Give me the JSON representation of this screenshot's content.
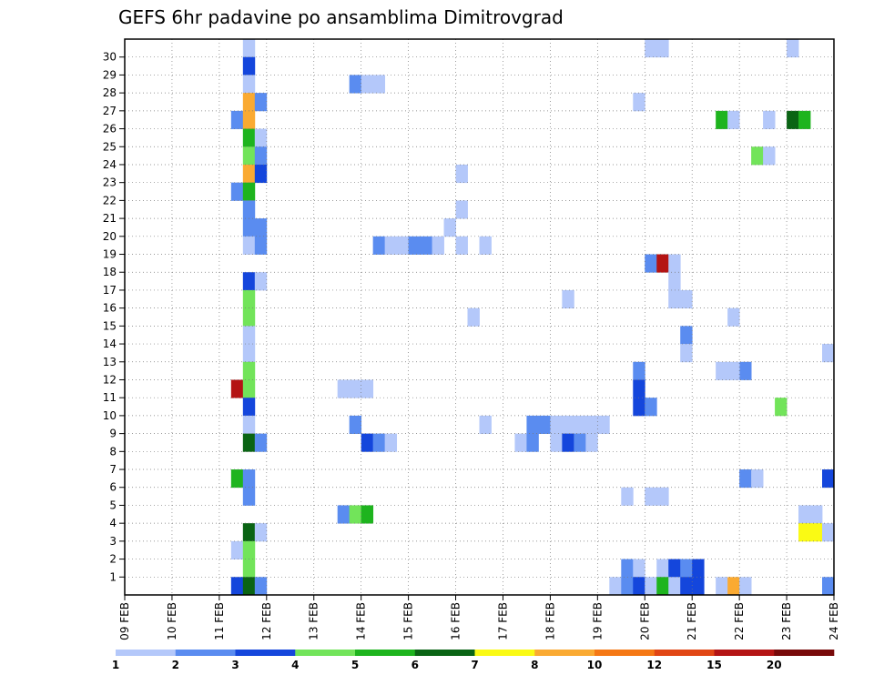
{
  "chart_data": {
    "type": "heatmap",
    "title": "GEFS 6hr padavine po ansamblima Dimitrovgrad",
    "xlabel": "",
    "ylabel": "",
    "x_tick_labels": [
      "09 FEB",
      "10 FEB",
      "11 FEB",
      "12 FEB",
      "13 FEB",
      "14 FEB",
      "15 FEB",
      "16 FEB",
      "17 FEB",
      "18 FEB",
      "19 FEB",
      "20 FEB",
      "21 FEB",
      "22 FEB",
      "23 FEB",
      "24 FEB"
    ],
    "y_tick_labels": [
      "1",
      "2",
      "3",
      "4",
      "5",
      "6",
      "7",
      "8",
      "9",
      "10",
      "11",
      "12",
      "13",
      "14",
      "15",
      "16",
      "17",
      "18",
      "19",
      "20",
      "21",
      "22",
      "23",
      "24",
      "25",
      "26",
      "27",
      "28",
      "29",
      "30"
    ],
    "time_steps": 60,
    "members": 31,
    "grid": true,
    "colorbar": {
      "bounds": [
        "1",
        "2",
        "3",
        "4",
        "5",
        "6",
        "7",
        "8",
        "10",
        "12",
        "15",
        "20"
      ],
      "colors": [
        "#b4c8fa",
        "#5a8cf0",
        "#1446dc",
        "#72e45a",
        "#1eb41e",
        "#0a6414",
        "#fafa14",
        "#faaa32",
        "#f57814",
        "#e14614",
        "#b41414",
        "#780a0a"
      ]
    },
    "cells": [
      {
        "step": 10,
        "member": 30,
        "cls": 1
      },
      {
        "step": 10,
        "member": 29,
        "cls": 3
      },
      {
        "step": 10,
        "member": 28,
        "cls": 1
      },
      {
        "step": 10,
        "member": 27,
        "cls": 8
      },
      {
        "step": 11,
        "member": 27,
        "cls": 2
      },
      {
        "step": 9,
        "member": 26,
        "cls": 2
      },
      {
        "step": 10,
        "member": 26,
        "cls": 8
      },
      {
        "step": 10,
        "member": 25,
        "cls": 5
      },
      {
        "step": 11,
        "member": 25,
        "cls": 1
      },
      {
        "step": 10,
        "member": 24,
        "cls": 4
      },
      {
        "step": 11,
        "member": 24,
        "cls": 2
      },
      {
        "step": 10,
        "member": 23,
        "cls": 8
      },
      {
        "step": 11,
        "member": 23,
        "cls": 3
      },
      {
        "step": 9,
        "member": 22,
        "cls": 2
      },
      {
        "step": 10,
        "member": 22,
        "cls": 5
      },
      {
        "step": 10,
        "member": 21,
        "cls": 2
      },
      {
        "step": 10,
        "member": 20,
        "cls": 2
      },
      {
        "step": 11,
        "member": 20,
        "cls": 2
      },
      {
        "step": 10,
        "member": 19,
        "cls": 1
      },
      {
        "step": 11,
        "member": 19,
        "cls": 2
      },
      {
        "step": 10,
        "member": 17,
        "cls": 3
      },
      {
        "step": 11,
        "member": 17,
        "cls": 1
      },
      {
        "step": 10,
        "member": 16,
        "cls": 4
      },
      {
        "step": 10,
        "member": 15,
        "cls": 4
      },
      {
        "step": 10,
        "member": 14,
        "cls": 1
      },
      {
        "step": 10,
        "member": 13,
        "cls": 1
      },
      {
        "step": 10,
        "member": 12,
        "cls": 4
      },
      {
        "step": 9,
        "member": 11,
        "cls": 11
      },
      {
        "step": 10,
        "member": 11,
        "cls": 4
      },
      {
        "step": 10,
        "member": 10,
        "cls": 3
      },
      {
        "step": 10,
        "member": 9,
        "cls": 1
      },
      {
        "step": 10,
        "member": 8,
        "cls": 6
      },
      {
        "step": 11,
        "member": 8,
        "cls": 2
      },
      {
        "step": 9,
        "member": 6,
        "cls": 5
      },
      {
        "step": 10,
        "member": 6,
        "cls": 2
      },
      {
        "step": 10,
        "member": 5,
        "cls": 2
      },
      {
        "step": 10,
        "member": 3,
        "cls": 6
      },
      {
        "step": 11,
        "member": 3,
        "cls": 1
      },
      {
        "step": 9,
        "member": 2,
        "cls": 1
      },
      {
        "step": 10,
        "member": 2,
        "cls": 4
      },
      {
        "step": 10,
        "member": 1,
        "cls": 4
      },
      {
        "step": 9,
        "member": 0,
        "cls": 3
      },
      {
        "step": 10,
        "member": 0,
        "cls": 6
      },
      {
        "step": 11,
        "member": 0,
        "cls": 2
      },
      {
        "step": 19,
        "member": 28,
        "cls": 2
      },
      {
        "step": 20,
        "member": 28,
        "cls": 1
      },
      {
        "step": 21,
        "member": 28,
        "cls": 1
      },
      {
        "step": 21,
        "member": 19,
        "cls": 2
      },
      {
        "step": 22,
        "member": 19,
        "cls": 1
      },
      {
        "step": 23,
        "member": 19,
        "cls": 1
      },
      {
        "step": 24,
        "member": 19,
        "cls": 2
      },
      {
        "step": 25,
        "member": 19,
        "cls": 2
      },
      {
        "step": 26,
        "member": 19,
        "cls": 1
      },
      {
        "step": 18,
        "member": 11,
        "cls": 1
      },
      {
        "step": 19,
        "member": 11,
        "cls": 1
      },
      {
        "step": 20,
        "member": 11,
        "cls": 1
      },
      {
        "step": 19,
        "member": 9,
        "cls": 2
      },
      {
        "step": 20,
        "member": 8,
        "cls": 3
      },
      {
        "step": 21,
        "member": 8,
        "cls": 2
      },
      {
        "step": 22,
        "member": 8,
        "cls": 1
      },
      {
        "step": 18,
        "member": 4,
        "cls": 2
      },
      {
        "step": 19,
        "member": 4,
        "cls": 4
      },
      {
        "step": 20,
        "member": 4,
        "cls": 5
      },
      {
        "step": 28,
        "member": 23,
        "cls": 1
      },
      {
        "step": 28,
        "member": 21,
        "cls": 1
      },
      {
        "step": 27,
        "member": 20,
        "cls": 1
      },
      {
        "step": 28,
        "member": 19,
        "cls": 1
      },
      {
        "step": 30,
        "member": 19,
        "cls": 1
      },
      {
        "step": 29,
        "member": 15,
        "cls": 1
      },
      {
        "step": 30,
        "member": 9,
        "cls": 1
      },
      {
        "step": 34,
        "member": 9,
        "cls": 2
      },
      {
        "step": 35,
        "member": 9,
        "cls": 2
      },
      {
        "step": 33,
        "member": 8,
        "cls": 1
      },
      {
        "step": 34,
        "member": 8,
        "cls": 2
      },
      {
        "step": 36,
        "member": 9,
        "cls": 1
      },
      {
        "step": 37,
        "member": 9,
        "cls": 1
      },
      {
        "step": 38,
        "member": 9,
        "cls": 1
      },
      {
        "step": 39,
        "member": 9,
        "cls": 1
      },
      {
        "step": 40,
        "member": 9,
        "cls": 1
      },
      {
        "step": 36,
        "member": 8,
        "cls": 1
      },
      {
        "step": 37,
        "member": 8,
        "cls": 3
      },
      {
        "step": 38,
        "member": 8,
        "cls": 2
      },
      {
        "step": 39,
        "member": 8,
        "cls": 1
      },
      {
        "step": 37,
        "member": 16,
        "cls": 1
      },
      {
        "step": 44,
        "member": 30,
        "cls": 1
      },
      {
        "step": 45,
        "member": 30,
        "cls": 1
      },
      {
        "step": 43,
        "member": 27,
        "cls": 1
      },
      {
        "step": 44,
        "member": 18,
        "cls": 2
      },
      {
        "step": 45,
        "member": 18,
        "cls": 11
      },
      {
        "step": 46,
        "member": 18,
        "cls": 1
      },
      {
        "step": 46,
        "member": 17,
        "cls": 1
      },
      {
        "step": 46,
        "member": 16,
        "cls": 1
      },
      {
        "step": 47,
        "member": 16,
        "cls": 1
      },
      {
        "step": 47,
        "member": 14,
        "cls": 2
      },
      {
        "step": 47,
        "member": 13,
        "cls": 1
      },
      {
        "step": 43,
        "member": 12,
        "cls": 2
      },
      {
        "step": 43,
        "member": 11,
        "cls": 3
      },
      {
        "step": 43,
        "member": 10,
        "cls": 3
      },
      {
        "step": 44,
        "member": 10,
        "cls": 2
      },
      {
        "step": 42,
        "member": 5,
        "cls": 1
      },
      {
        "step": 44,
        "member": 5,
        "cls": 1
      },
      {
        "step": 45,
        "member": 5,
        "cls": 1
      },
      {
        "step": 42,
        "member": 1,
        "cls": 2
      },
      {
        "step": 43,
        "member": 1,
        "cls": 1
      },
      {
        "step": 45,
        "member": 1,
        "cls": 1
      },
      {
        "step": 46,
        "member": 1,
        "cls": 3
      },
      {
        "step": 47,
        "member": 1,
        "cls": 2
      },
      {
        "step": 48,
        "member": 1,
        "cls": 3
      },
      {
        "step": 41,
        "member": 0,
        "cls": 1
      },
      {
        "step": 42,
        "member": 0,
        "cls": 2
      },
      {
        "step": 43,
        "member": 0,
        "cls": 3
      },
      {
        "step": 44,
        "member": 0,
        "cls": 1
      },
      {
        "step": 45,
        "member": 0,
        "cls": 5
      },
      {
        "step": 46,
        "member": 0,
        "cls": 1
      },
      {
        "step": 47,
        "member": 0,
        "cls": 3
      },
      {
        "step": 48,
        "member": 0,
        "cls": 3
      },
      {
        "step": 50,
        "member": 0,
        "cls": 1
      },
      {
        "step": 51,
        "member": 0,
        "cls": 8
      },
      {
        "step": 52,
        "member": 0,
        "cls": 1
      },
      {
        "step": 50,
        "member": 26,
        "cls": 5
      },
      {
        "step": 51,
        "member": 26,
        "cls": 1
      },
      {
        "step": 54,
        "member": 26,
        "cls": 1
      },
      {
        "step": 56,
        "member": 26,
        "cls": 6
      },
      {
        "step": 57,
        "member": 26,
        "cls": 5
      },
      {
        "step": 53,
        "member": 24,
        "cls": 4
      },
      {
        "step": 54,
        "member": 24,
        "cls": 1
      },
      {
        "step": 51,
        "member": 15,
        "cls": 1
      },
      {
        "step": 52,
        "member": 12,
        "cls": 2
      },
      {
        "step": 50,
        "member": 12,
        "cls": 1
      },
      {
        "step": 51,
        "member": 12,
        "cls": 1
      },
      {
        "step": 55,
        "member": 10,
        "cls": 4
      },
      {
        "step": 52,
        "member": 6,
        "cls": 2
      },
      {
        "step": 53,
        "member": 6,
        "cls": 1
      },
      {
        "step": 56,
        "member": 30,
        "cls": 1
      },
      {
        "step": 59,
        "member": 13,
        "cls": 1
      },
      {
        "step": 59,
        "member": 6,
        "cls": 3
      },
      {
        "step": 57,
        "member": 4,
        "cls": 1
      },
      {
        "step": 58,
        "member": 4,
        "cls": 1
      },
      {
        "step": 57,
        "member": 3,
        "cls": 7
      },
      {
        "step": 58,
        "member": 3,
        "cls": 7
      },
      {
        "step": 59,
        "member": 3,
        "cls": 1
      },
      {
        "step": 59,
        "member": 0,
        "cls": 2
      }
    ]
  }
}
